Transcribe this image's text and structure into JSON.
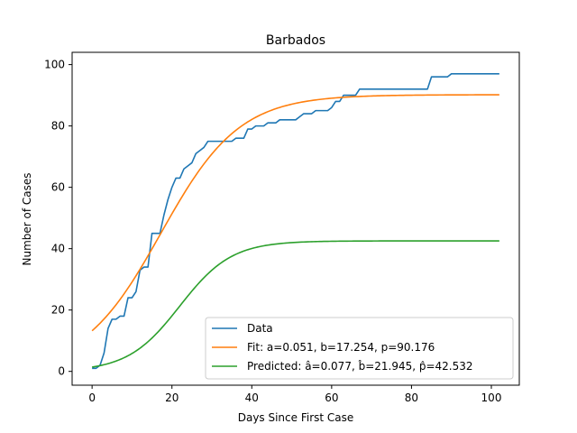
{
  "chart_data": {
    "type": "line",
    "title": "Barbados",
    "xlabel": "Days Since First Case",
    "ylabel": "Number of Cases",
    "xlim": [
      -5,
      107
    ],
    "ylim": [
      -4.5,
      104
    ],
    "xticks": [
      0,
      20,
      40,
      60,
      80,
      100
    ],
    "yticks": [
      0,
      20,
      40,
      60,
      80,
      100
    ],
    "grid": false,
    "legend_position": "lower-right",
    "series": [
      {
        "name": "Data",
        "kind": "step-data",
        "color": "#1f77b4",
        "x": [
          0,
          1,
          2,
          3,
          4,
          5,
          6,
          7,
          8,
          9,
          10,
          11,
          12,
          13,
          14,
          15,
          16,
          17,
          18,
          19,
          20,
          21,
          22,
          23,
          24,
          25,
          26,
          27,
          28,
          29,
          30,
          31,
          32,
          33,
          34,
          35,
          36,
          37,
          38,
          39,
          40,
          41,
          42,
          43,
          44,
          45,
          46,
          47,
          48,
          49,
          50,
          51,
          52,
          53,
          54,
          55,
          56,
          57,
          58,
          59,
          60,
          61,
          62,
          63,
          64,
          65,
          66,
          67,
          68,
          69,
          70,
          71,
          72,
          73,
          74,
          75,
          76,
          77,
          78,
          79,
          80,
          81,
          82,
          83,
          84,
          85,
          86,
          87,
          88,
          89,
          90,
          91,
          92,
          93,
          94,
          95,
          96,
          97,
          98,
          99,
          100,
          101,
          102
        ],
        "y": [
          1,
          1,
          2,
          6,
          14,
          17,
          17,
          18,
          18,
          24,
          24,
          26,
          33,
          34,
          34,
          45,
          45,
          45,
          51,
          56,
          60,
          63,
          63,
          66,
          67,
          68,
          71,
          72,
          73,
          75,
          75,
          75,
          75,
          75,
          75,
          75,
          76,
          76,
          76,
          79,
          79,
          80,
          80,
          80,
          81,
          81,
          81,
          82,
          82,
          82,
          82,
          82,
          83,
          84,
          84,
          84,
          85,
          85,
          85,
          85,
          86,
          88,
          88,
          90,
          90,
          90,
          90,
          92,
          92,
          92,
          92,
          92,
          92,
          92,
          92,
          92,
          92,
          92,
          92,
          92,
          92,
          92,
          92,
          92,
          92,
          96,
          96,
          96,
          96,
          96,
          97,
          97,
          97,
          97,
          97,
          97,
          97,
          97,
          97,
          97,
          97,
          97,
          97
        ]
      },
      {
        "name": "Fit: a=0.051, b=17.254, p=90.176",
        "kind": "logistic",
        "color": "#ff7f0e",
        "params": {
          "a": 0.051,
          "b": 17.254,
          "p": 90.176
        },
        "x_range": [
          0,
          102
        ]
      },
      {
        "name": "Predicted: â=0.077, b̂=21.945, p̂=42.532",
        "kind": "logistic",
        "color": "#2ca02c",
        "params": {
          "a": 0.077,
          "b": 21.945,
          "p": 42.532
        },
        "x_range": [
          0,
          102
        ]
      }
    ]
  }
}
